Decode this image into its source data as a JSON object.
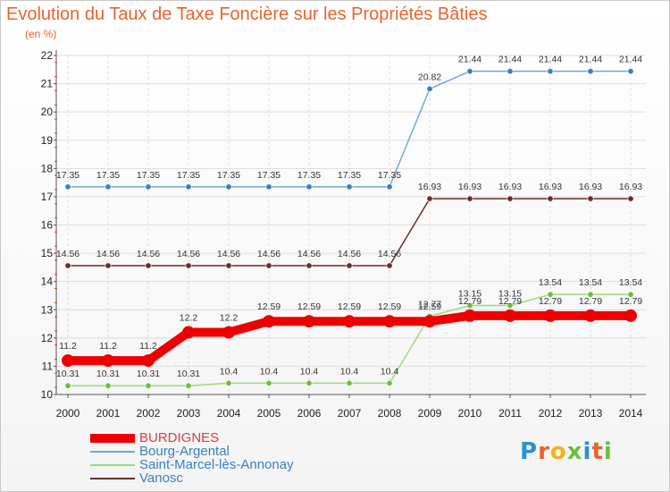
{
  "title": "Evolution du Taux de Taxe Foncière sur les Propriétés Bâties",
  "subtitle": "(en %)",
  "logo": "Proxiti",
  "chart_data": {
    "type": "line",
    "title": "Evolution du Taux de Taxe Foncière sur les Propriétés Bâties",
    "ylabel": "(en %)",
    "xlabel": "",
    "ylim": [
      10,
      22
    ],
    "yticks": [
      "10",
      "11",
      "12",
      "13",
      "14",
      "15",
      "16",
      "17",
      "18",
      "19",
      "20",
      "21",
      "22"
    ],
    "categories": [
      "2000",
      "2001",
      "2002",
      "2003",
      "2004",
      "2005",
      "2006",
      "2007",
      "2008",
      "2009",
      "2010",
      "2011",
      "2012",
      "2013",
      "2014"
    ],
    "series": [
      {
        "name": "Bourg-Argental",
        "color": "#6fa8d8",
        "marker": "#3b7fbf",
        "values": [
          17.35,
          17.35,
          17.35,
          17.35,
          17.35,
          17.35,
          17.35,
          17.35,
          17.35,
          20.82,
          21.44,
          21.44,
          21.44,
          21.44,
          21.44
        ],
        "labels": [
          "17.35",
          "17.35",
          "17.35",
          "17.35",
          "17.35",
          "17.35",
          "17.35",
          "17.35",
          "17.35",
          "20.82",
          "21.44",
          "21.44",
          "21.44",
          "21.44",
          "21.44"
        ]
      },
      {
        "name": "Vanosc",
        "color": "#6b2b2b",
        "marker": "#6b2b2b",
        "values": [
          14.56,
          14.56,
          14.56,
          14.56,
          14.56,
          14.56,
          14.56,
          14.56,
          14.56,
          16.93,
          16.93,
          16.93,
          16.93,
          16.93,
          16.93
        ],
        "labels": [
          "14.56",
          "14.56",
          "14.56",
          "14.56",
          "14.56",
          "14.56",
          "14.56",
          "14.56",
          "14.56",
          "16.93",
          "16.93",
          "16.93",
          "16.93",
          "16.93",
          "16.93"
        ]
      },
      {
        "name": "Saint-Marcel-lès-Annonay",
        "color": "#9fd87a",
        "marker": "#6cbf3a",
        "values": [
          10.31,
          10.31,
          10.31,
          10.31,
          10.4,
          10.4,
          10.4,
          10.4,
          10.4,
          12.77,
          13.15,
          13.15,
          13.54,
          13.54,
          13.54
        ],
        "labels": [
          "10.31",
          "10.31",
          "10.31",
          "10.31",
          "10.4",
          "10.4",
          "10.4",
          "10.4",
          "10.4",
          "12.77",
          "13.15",
          "13.15",
          "13.54",
          "13.54",
          "13.54"
        ]
      },
      {
        "name": "BURDIGNES",
        "color": "#ee0000",
        "marker": "#ee0000",
        "values": [
          11.2,
          11.2,
          11.2,
          12.2,
          12.2,
          12.59,
          12.59,
          12.59,
          12.59,
          12.59,
          12.79,
          12.79,
          12.79,
          12.79,
          12.79
        ],
        "labels": [
          "11.2",
          "11.2",
          "11.2",
          "12.2",
          "12.2",
          "12.59",
          "12.59",
          "12.59",
          "12.59",
          "12.59",
          "12.79",
          "12.79",
          "12.79",
          "12.79",
          "12.79"
        ]
      }
    ],
    "legend": [
      "BURDIGNES",
      "Bourg-Argental",
      "Saint-Marcel-lès-Annonay",
      "Vanosc"
    ]
  }
}
